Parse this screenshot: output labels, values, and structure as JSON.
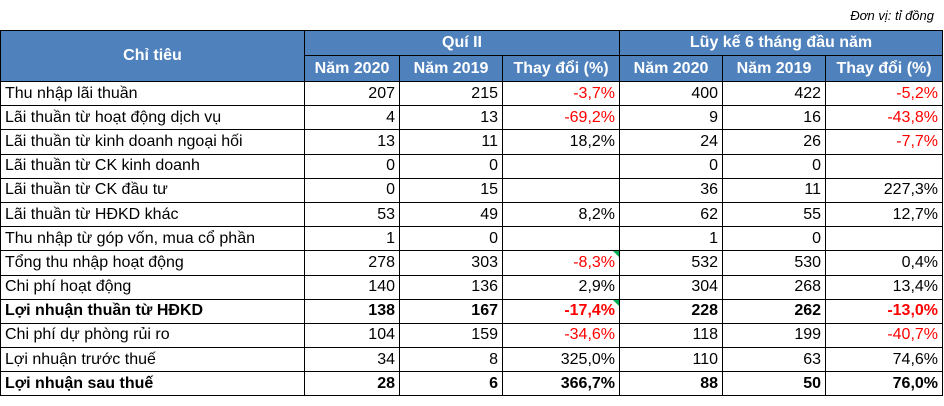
{
  "unit": "Đơn vị: tỉ đồng",
  "header": {
    "indicator": "Chỉ tiêu",
    "group1": "Quí II",
    "group2": "Lũy kế 6 tháng đầu năm",
    "sub": [
      "Năm 2020",
      "Năm 2019",
      "Thay đổi (%)",
      "Năm 2020",
      "Năm 2019",
      "Thay đổi (%)"
    ]
  },
  "rows": [
    {
      "label": "Thu nhập lãi thuần",
      "v": [
        "207",
        "215",
        "-3,7%",
        "400",
        "422",
        "-5,2%"
      ]
    },
    {
      "label": "Lãi thuần từ hoạt động dịch vụ",
      "v": [
        "4",
        "13",
        "-69,2%",
        "9",
        "16",
        "-43,8%"
      ]
    },
    {
      "label": "Lãi thuần từ kinh doanh ngoại hối",
      "v": [
        "13",
        "11",
        "18,2%",
        "24",
        "26",
        "-7,7%"
      ]
    },
    {
      "label": "Lãi thuần từ CK kinh doanh",
      "v": [
        "0",
        "0",
        "",
        "0",
        "0",
        ""
      ]
    },
    {
      "label": "Lãi thuần từ CK đầu tư",
      "v": [
        "0",
        "15",
        "",
        "36",
        "11",
        "227,3%"
      ]
    },
    {
      "label": "Lãi thuần từ HĐKD khác",
      "v": [
        "53",
        "49",
        "8,2%",
        "62",
        "55",
        "12,7%"
      ]
    },
    {
      "label": "Thu nhập từ góp vốn, mua cổ phần",
      "v": [
        "1",
        "0",
        "",
        "1",
        "0",
        ""
      ]
    },
    {
      "label": "Tổng thu nhập hoạt động",
      "v": [
        "278",
        "303",
        "-8,3%",
        "532",
        "530",
        "0,4%"
      ]
    },
    {
      "label": "Chi phí hoạt động",
      "v": [
        "140",
        "136",
        "2,9%",
        "304",
        "268",
        "13,4%"
      ]
    },
    {
      "label": "Lợi nhuận thuần từ HĐKD",
      "v": [
        "138",
        "167",
        "-17,4%",
        "228",
        "262",
        "-13,0%"
      ]
    },
    {
      "label": "Chi phí dự phòng rủi ro",
      "v": [
        "104",
        "159",
        "-34,6%",
        "118",
        "199",
        "-40,7%"
      ]
    },
    {
      "label": "Lợi nhuận trước thuế",
      "v": [
        "34",
        "8",
        "325,0%",
        "110",
        "63",
        "74,6%"
      ]
    },
    {
      "label": "Lợi nhuận sau thuế",
      "v": [
        "28",
        "6",
        "366,7%",
        "88",
        "50",
        "76,0%"
      ]
    }
  ],
  "colors": {
    "header_bg": "#4f81bd",
    "negative": "#ff0000",
    "cell_marker": "#00b050"
  }
}
